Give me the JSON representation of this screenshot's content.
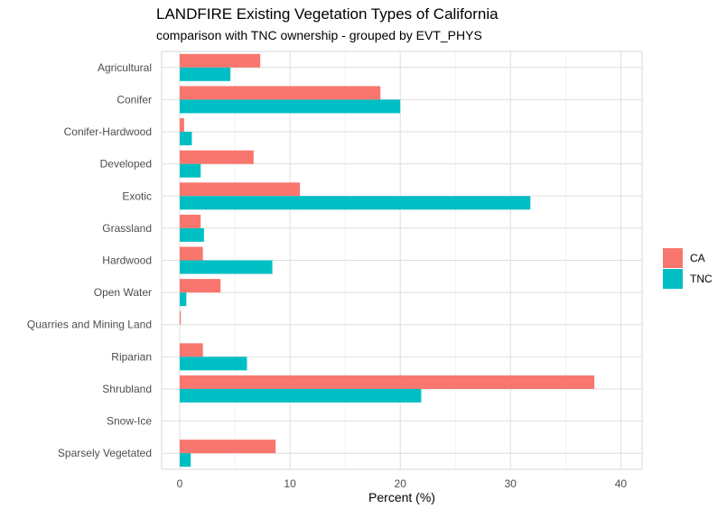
{
  "chart_data": {
    "type": "bar",
    "orientation": "horizontal",
    "title": "LANDFIRE Existing Vegetation Types of California",
    "subtitle": "comparison with TNC ownership - grouped by EVT_PHYS",
    "xlabel": "Percent (%)",
    "ylabel": "",
    "xlim": [
      -1.5,
      41.5
    ],
    "xticks": [
      0,
      10,
      20,
      30,
      40
    ],
    "grid": true,
    "legend_position": "right",
    "categories": [
      "Agricultural",
      "Conifer",
      "Conifer-Hardwood",
      "Developed",
      "Exotic",
      "Grassland",
      "Hardwood",
      "Open Water",
      "Quarries and Mining Land",
      "Riparian",
      "Shrubland",
      "Snow-Ice",
      "Sparsely Vegetated"
    ],
    "series": [
      {
        "name": "CA",
        "color": "#F8766D",
        "values": [
          7.3,
          18.2,
          0.4,
          6.7,
          10.9,
          1.9,
          2.1,
          3.7,
          0.1,
          2.1,
          37.6,
          0.0,
          8.7
        ]
      },
      {
        "name": "TNC",
        "color": "#00BFC4",
        "values": [
          4.6,
          20.0,
          1.1,
          1.9,
          31.8,
          2.2,
          8.4,
          0.6,
          0.0,
          6.1,
          21.9,
          0.0,
          1.0
        ]
      }
    ]
  }
}
